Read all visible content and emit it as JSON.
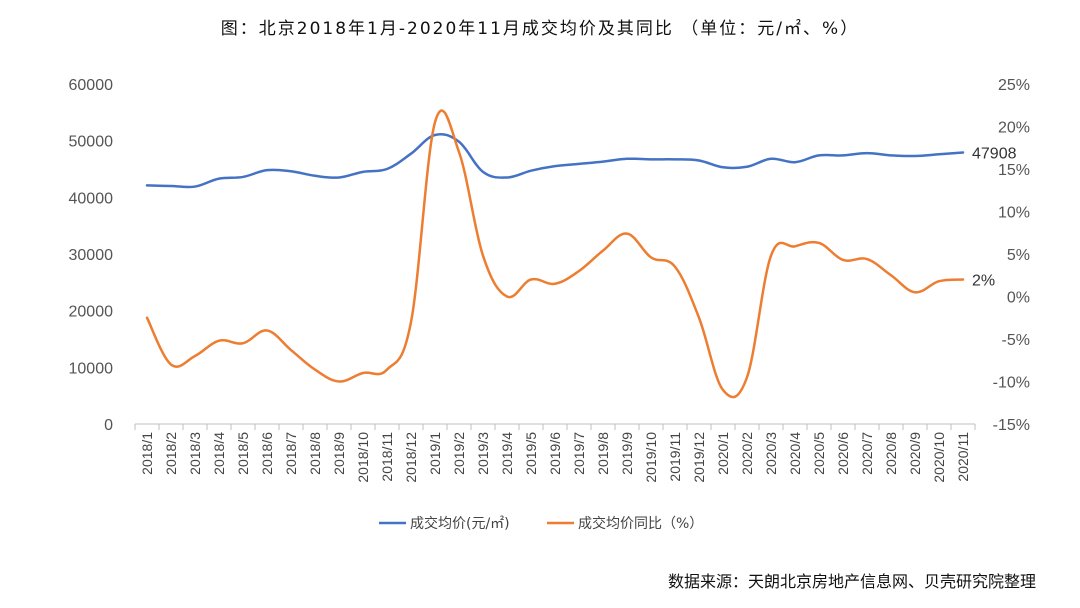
{
  "chart_data": {
    "type": "line",
    "title": "图：北京2018年1月-2020年11月成交均价及其同比 （单位：元/㎡、%）",
    "source": "数据来源：天朗北京房地产信息网、贝壳研究院整理",
    "categories": [
      "2018/1",
      "2018/2",
      "2018/3",
      "2018/4",
      "2018/5",
      "2018/6",
      "2018/7",
      "2018/8",
      "2018/9",
      "2018/10",
      "2018/11",
      "2018/12",
      "2019/1",
      "2019/2",
      "2019/3",
      "2019/4",
      "2019/5",
      "2019/6",
      "2019/7",
      "2019/8",
      "2019/9",
      "2019/10",
      "2019/11",
      "2019/12",
      "2020/1",
      "2020/2",
      "2020/3",
      "2020/4",
      "2020/5",
      "2020/6",
      "2020/7",
      "2020/8",
      "2020/9",
      "2020/10",
      "2020/11"
    ],
    "left_axis": {
      "ylim": [
        0,
        60000
      ],
      "ticks": [
        "0",
        "10000",
        "20000",
        "30000",
        "40000",
        "50000",
        "60000"
      ]
    },
    "right_axis": {
      "ylim": [
        -15,
        25
      ],
      "ticks": [
        "-15%",
        "-10%",
        "-5%",
        "0%",
        "5%",
        "10%",
        "15%",
        "20%",
        "25%"
      ]
    },
    "series": [
      {
        "name": "成交均价(元/㎡)",
        "axis": "left",
        "color": "#4472C4",
        "values": [
          42100,
          42000,
          41900,
          43300,
          43600,
          44800,
          44600,
          43800,
          43500,
          44500,
          45000,
          47700,
          51000,
          49800,
          44500,
          43500,
          44700,
          45500,
          45900,
          46300,
          46800,
          46700,
          46700,
          46500,
          45300,
          45400,
          46800,
          46200,
          47400,
          47400,
          47800,
          47400,
          47300,
          47600,
          47908
        ],
        "end_label": "47908"
      },
      {
        "name": "成交均价同比（%）",
        "axis": "right",
        "color": "#ED7D31",
        "values": [
          -2.5,
          -8,
          -7,
          -5.2,
          -5.5,
          -4,
          -6.3,
          -8.6,
          -10,
          -9,
          -8.6,
          -3,
          20.5,
          17,
          4.8,
          0,
          2,
          1.5,
          3,
          5.4,
          7.4,
          4.6,
          3.5,
          -2.5,
          -11,
          -9.5,
          4.8,
          5.9,
          6.3,
          4.3,
          4.4,
          2.5,
          0.5,
          1.8,
          2
        ],
        "end_label": "2%"
      }
    ],
    "legend_position": "bottom-center",
    "grid": false
  }
}
